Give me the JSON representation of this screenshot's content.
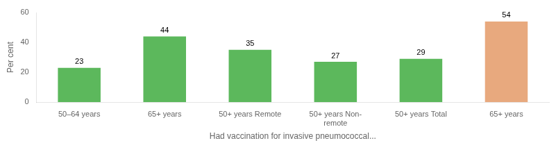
{
  "chart_data": {
    "type": "bar",
    "categories": [
      "50–64 years",
      "65+ years",
      "50+ years Remote",
      "50+ years Non-\nremote",
      "50+ years Total",
      "65+ years"
    ],
    "values": [
      23,
      44,
      35,
      27,
      29,
      54
    ],
    "colors": [
      "#5cb85c",
      "#5cb85c",
      "#5cb85c",
      "#5cb85c",
      "#5cb85c",
      "#e8a97e"
    ],
    "xlabel": "Had vaccination for invasive pneumococcal...",
    "ylabel": "Per cent",
    "ylim": [
      0,
      60
    ],
    "yticks": [
      0,
      20,
      40,
      60
    ],
    "grid": false,
    "data_labels": true
  }
}
